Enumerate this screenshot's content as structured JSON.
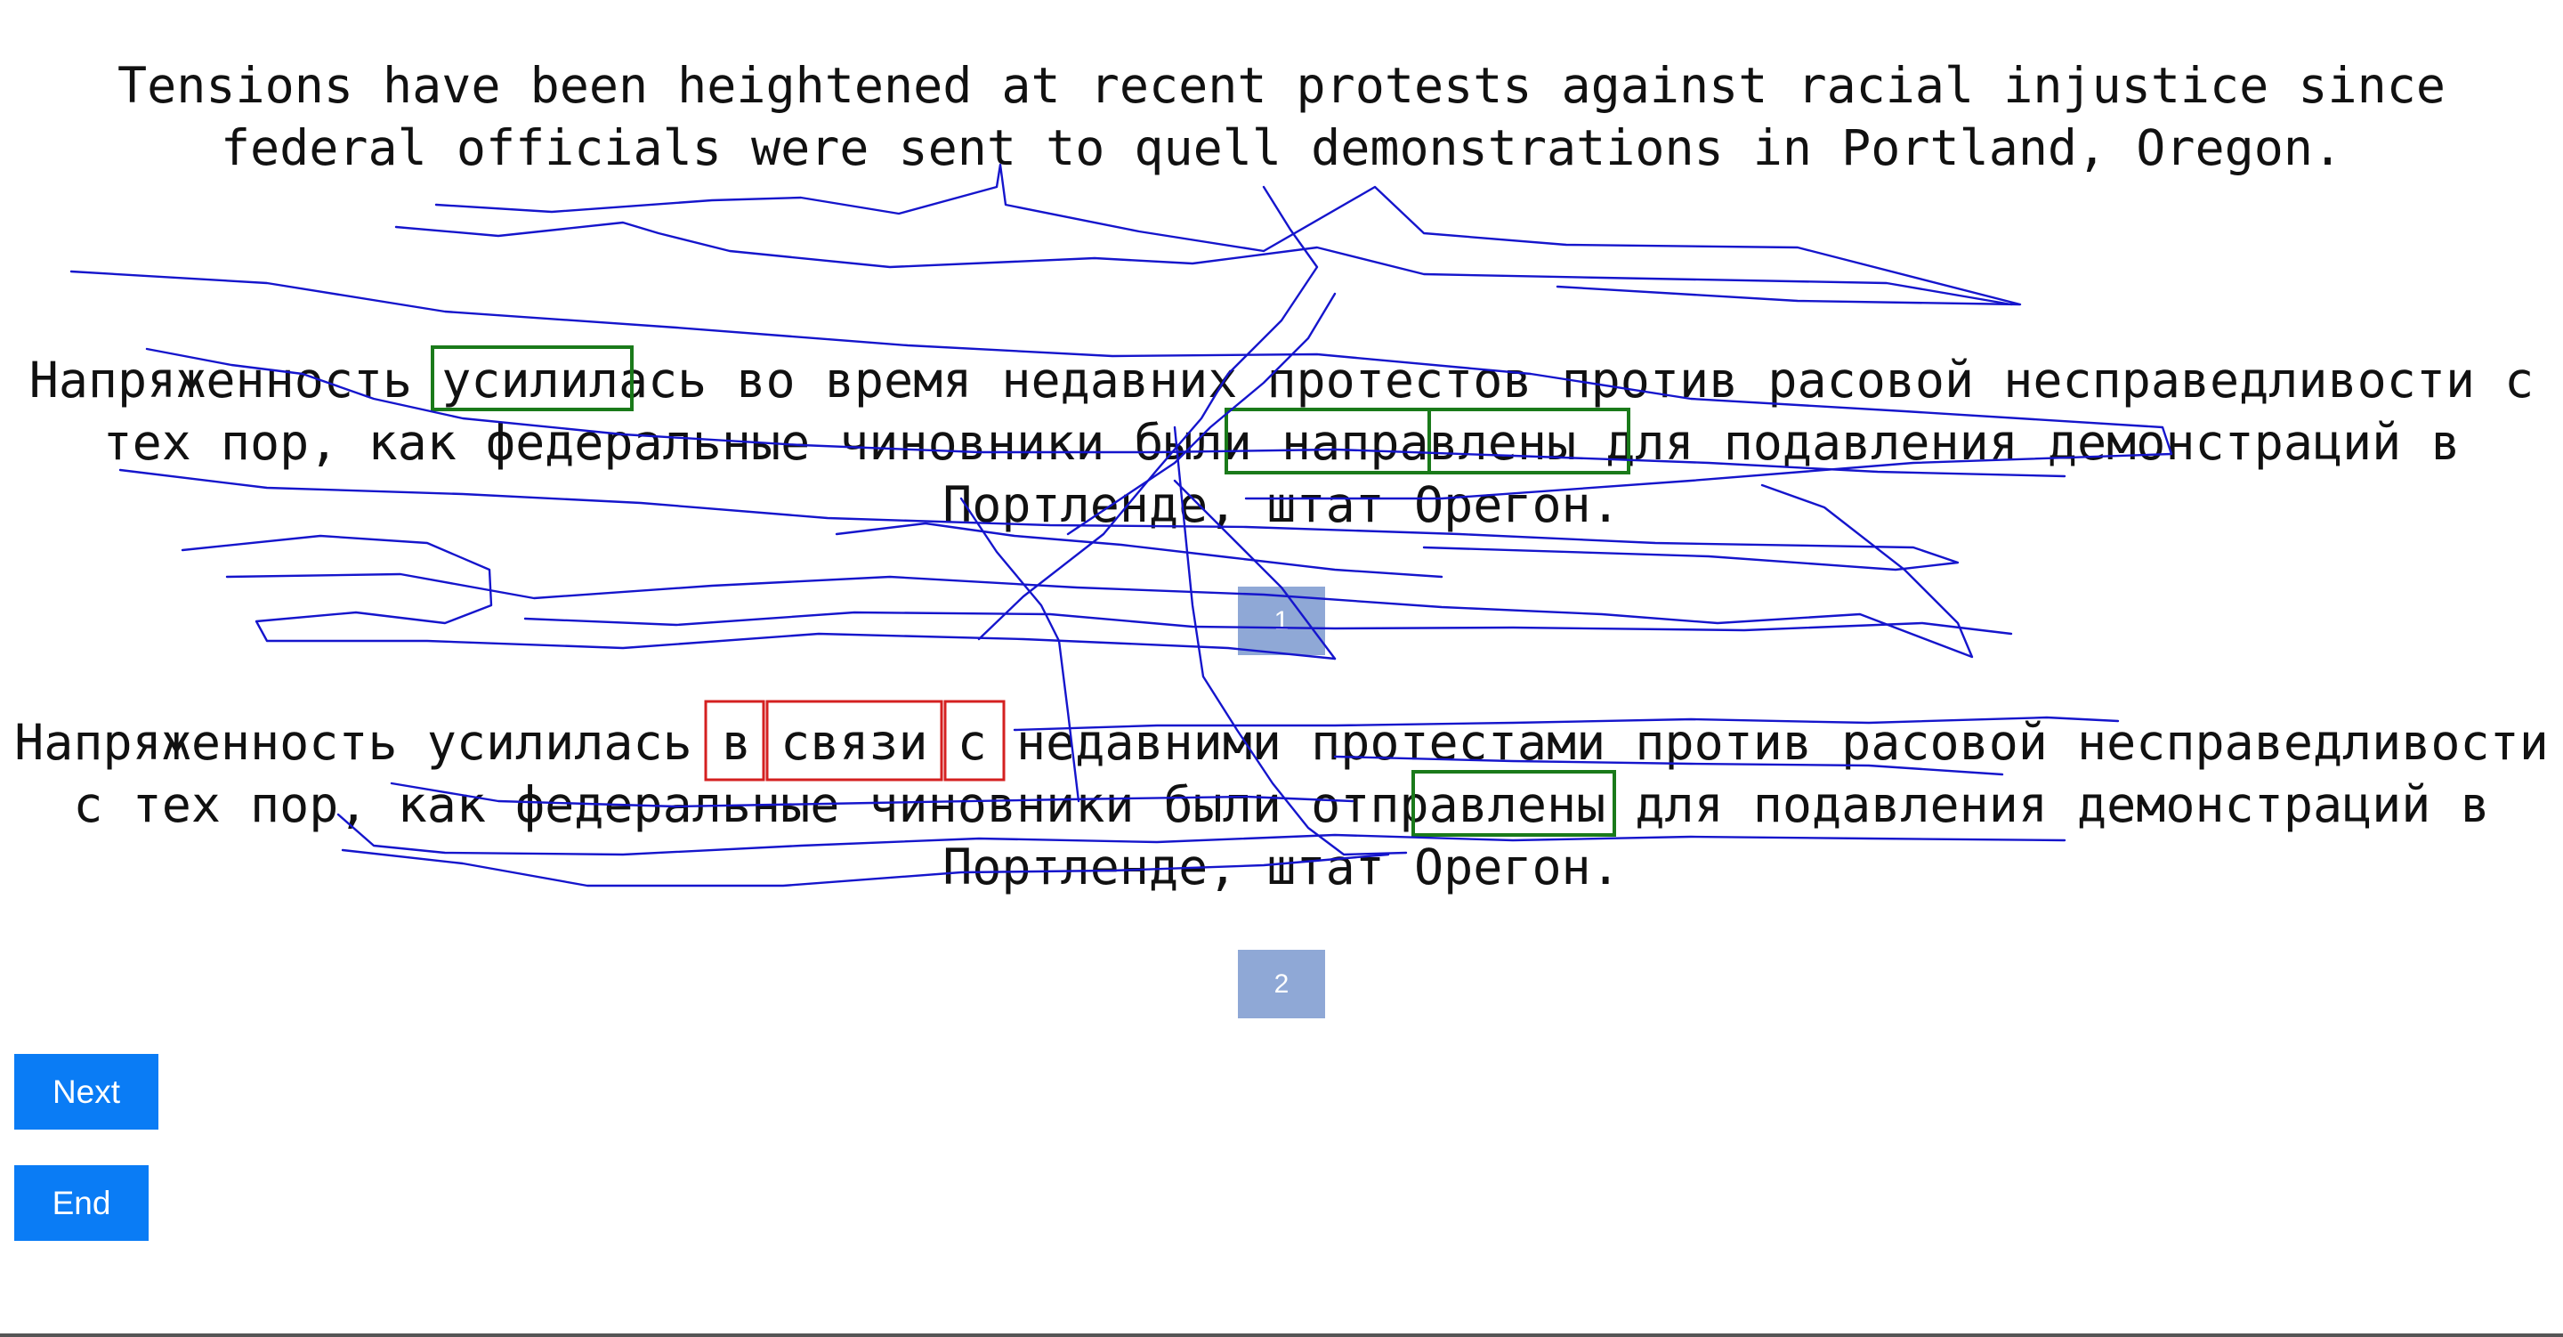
{
  "source": {
    "line1": "Tensions have been heightened at recent protests against racial injustice since",
    "line2": "federal officials were sent to quell demonstrations in Portland, Oregon."
  },
  "translation1": {
    "line1": "Напряженность усилилась во время недавних протестов против расовой несправедливости с",
    "line2": "тех пор, как федеральные чиновники были направлены для подавления демонстраций в",
    "line3": "Портленде, штат Орегон.",
    "select_label": "1"
  },
  "translation2": {
    "line1": "Напряженность усилилась в связи с недавними протестами против расовой несправедливости",
    "line2": "с тех пор, как федеральные чиновники были отправлены для подавления демонстраций в",
    "line3": "Портленде, штат Орегон.",
    "select_label": "2"
  },
  "controls": {
    "next_label": "Next",
    "end_label": "End"
  },
  "colors": {
    "highlight_good": "#1a7a1a",
    "highlight_bad": "#d42020",
    "gaze_trace": "#1515cc",
    "select_button": "#8fa8d6",
    "action_button": "#0a7cf5"
  }
}
